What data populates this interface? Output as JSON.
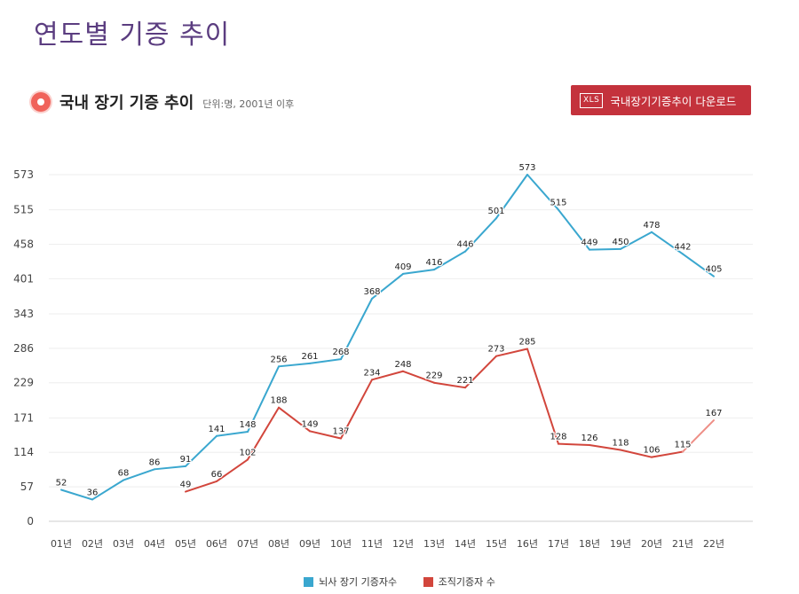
{
  "header": {
    "title": "연도별 기증 추이"
  },
  "section": {
    "title": "국내 장기 기증 추이",
    "subtitle": "단위:명, 2001년 이후",
    "download": {
      "icon_label": "XLS",
      "label": "국내장기기증추이 다운로드"
    }
  },
  "colors": {
    "series1": "#3aa7cf",
    "series2": "#d2463c",
    "series2_projection": "#ee8e86",
    "title": "#5b3d80",
    "button": "#c4323c"
  },
  "chart_data": {
    "type": "line",
    "categories": [
      "01년",
      "02년",
      "03년",
      "04년",
      "05년",
      "06년",
      "07년",
      "08년",
      "09년",
      "10년",
      "11년",
      "12년",
      "13년",
      "14년",
      "15년",
      "16년",
      "17년",
      "18년",
      "19년",
      "20년",
      "21년",
      "22년"
    ],
    "y_ticks": [
      0,
      57,
      114,
      171,
      229,
      286,
      343,
      401,
      458,
      515,
      573
    ],
    "ylim": [
      0,
      573
    ],
    "grid": true,
    "legend_position": "bottom",
    "series": [
      {
        "name": "뇌사 장기 기증자수",
        "color": "#3aa7cf",
        "values": [
          52,
          36,
          68,
          86,
          91,
          141,
          148,
          256,
          261,
          268,
          368,
          409,
          416,
          446,
          501,
          573,
          515,
          449,
          450,
          478,
          442,
          405
        ]
      },
      {
        "name": "조직기증자 수",
        "color": "#d2463c",
        "values": [
          null,
          null,
          null,
          null,
          49,
          66,
          102,
          188,
          149,
          137,
          234,
          248,
          229,
          221,
          273,
          285,
          128,
          126,
          118,
          106,
          115,
          167
        ]
      }
    ]
  }
}
